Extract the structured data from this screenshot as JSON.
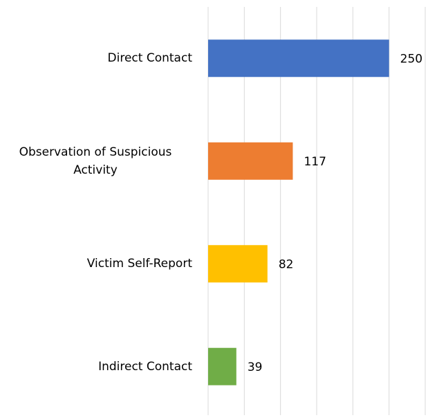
{
  "chart_data": {
    "type": "bar",
    "orientation": "horizontal",
    "categories": [
      "Direct Contact",
      "Observation of Suspicious Activity",
      "Victim Self-Report",
      "Indirect Contact"
    ],
    "values": [
      250,
      117,
      82,
      39
    ],
    "colors": [
      "#4472c4",
      "#ed7d31",
      "#ffc000",
      "#70ad47"
    ],
    "xlim": [
      0,
      300
    ],
    "xticks": [
      0,
      50,
      100,
      150,
      200,
      250,
      300
    ],
    "grid": true
  }
}
